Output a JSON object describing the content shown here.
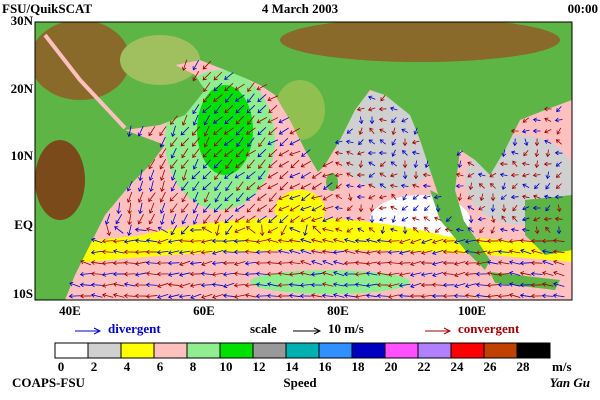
{
  "header": {
    "left": "FSU/QuikSCAT",
    "center": "4 March 2003",
    "right": "00:00"
  },
  "map": {
    "lat_labels": [
      "30N",
      "20N",
      "10N",
      "EQ",
      "10S"
    ],
    "lon_labels": [
      "40E",
      "60E",
      "80E",
      "100E"
    ]
  },
  "legend": {
    "divergent": "divergent",
    "scale": "scale",
    "scale_value": "10 m/s",
    "convergent": "convergent",
    "divergent_color": "#0000c8",
    "convergent_color": "#a00000"
  },
  "colorbar": {
    "colors": [
      "#ffffff",
      "#d0d0d0",
      "#ffff00",
      "#ffc0c0",
      "#90ee90",
      "#00e000",
      "#999999",
      "#00b0b0",
      "#3090ff",
      "#0000c0",
      "#ff50ff",
      "#b080ff",
      "#ff0000",
      "#c04000",
      "#000000"
    ],
    "labels": [
      0,
      2,
      4,
      6,
      8,
      10,
      12,
      14,
      16,
      18,
      20,
      22,
      24,
      26,
      28
    ],
    "unit": "m/s",
    "title": "Speed"
  },
  "footer": {
    "left": "COAPS-FSU",
    "right": "Yan Gu"
  }
}
